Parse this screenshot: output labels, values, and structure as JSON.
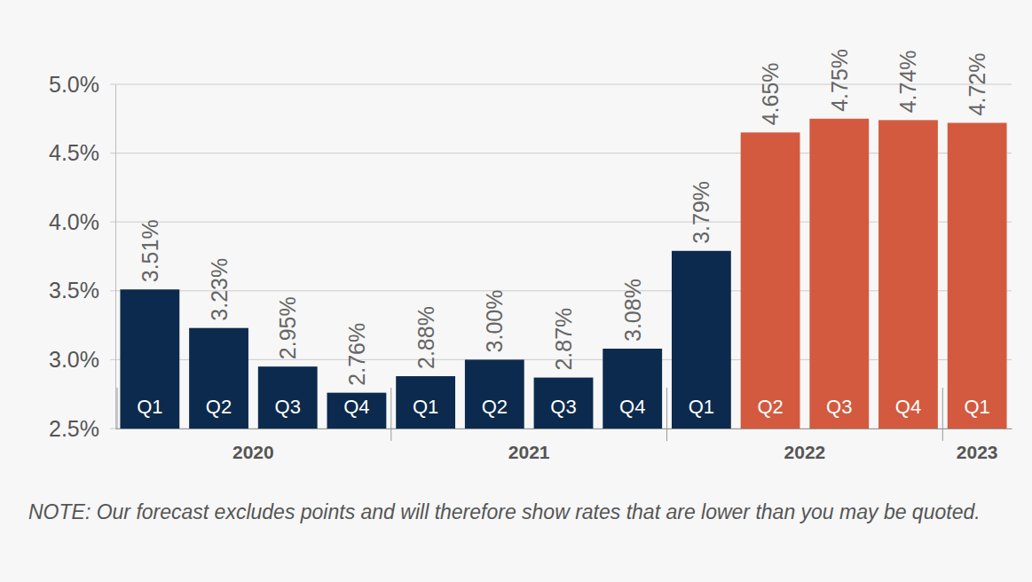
{
  "chart_data": {
    "type": "bar",
    "categories": [
      "Q1",
      "Q2",
      "Q3",
      "Q4",
      "Q1",
      "Q2",
      "Q3",
      "Q4",
      "Q1",
      "Q2",
      "Q3",
      "Q4",
      "Q1"
    ],
    "values": [
      3.51,
      3.23,
      2.95,
      2.76,
      2.88,
      3.0,
      2.87,
      3.08,
      3.79,
      4.65,
      4.75,
      4.74,
      4.72
    ],
    "value_labels": [
      "3.51%",
      "3.23%",
      "2.95%",
      "2.76%",
      "2.88%",
      "3.00%",
      "2.87%",
      "3.08%",
      "3.79%",
      "4.65%",
      "4.75%",
      "4.74%",
      "4.72%"
    ],
    "colors": [
      "#0c2a4d",
      "#0c2a4d",
      "#0c2a4d",
      "#0c2a4d",
      "#0c2a4d",
      "#0c2a4d",
      "#0c2a4d",
      "#0c2a4d",
      "#0c2a4d",
      "#d35a3f",
      "#d35a3f",
      "#d35a3f",
      "#d35a3f"
    ],
    "groups": [
      {
        "label": "2020",
        "count": 4
      },
      {
        "label": "2021",
        "count": 4
      },
      {
        "label": "2022",
        "count": 4
      },
      {
        "label": "2023",
        "count": 1
      }
    ],
    "ylim": [
      2.5,
      5.0
    ],
    "yticks": [
      {
        "value": 2.5,
        "label": "2.5%"
      },
      {
        "value": 3.0,
        "label": "3.0%"
      },
      {
        "value": 3.5,
        "label": "3.5%"
      },
      {
        "value": 4.0,
        "label": "4.0%"
      },
      {
        "value": 4.5,
        "label": "4.5%"
      },
      {
        "value": 5.0,
        "label": "5.0%"
      }
    ],
    "grid": true,
    "data_labels": true,
    "note": "NOTE: Our forecast excludes points and will therefore show rates that are lower than you may be quoted."
  }
}
